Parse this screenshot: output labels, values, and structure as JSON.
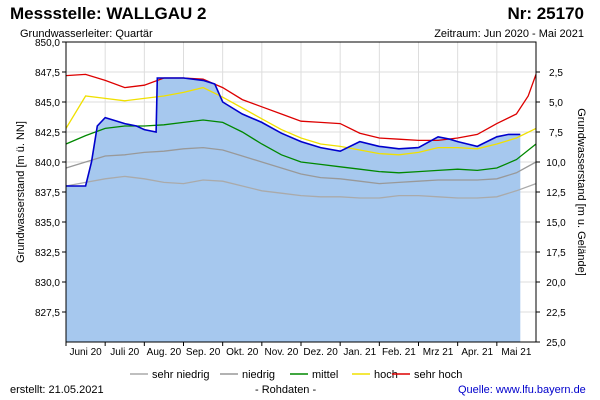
{
  "header": {
    "title": "Messstelle: WALLGAU 2",
    "number": "Nr: 25170",
    "aquifer": "Grundwasserleiter: Quartär",
    "period": "Zeitraum: Jun 2020 - Mai 2021"
  },
  "footer": {
    "created": "erstellt:  21.05.2021",
    "raw": "- Rohdaten -",
    "source_label": "Quelle:",
    "source_url": "www.lfu.bayern.de"
  },
  "colors": {
    "fill": "#a6c8ee",
    "measured": "#0000cc",
    "sehr_niedrig": "#aaaaaa",
    "niedrig": "#999999",
    "mittel": "#008800",
    "hoch": "#f0e000",
    "sehr_hoch": "#dd0000"
  },
  "chart_data": {
    "type": "line",
    "title": "",
    "ylabel": "Grundwasserstand [m ü. NN]",
    "y2label": "Grundwasserstand [m u. Gelände]",
    "ylim": [
      825.0,
      850.0
    ],
    "y2lim": [
      25.0,
      0.0
    ],
    "xlim": [
      0,
      12
    ],
    "yticks": [
      "827,5",
      "830,0",
      "832,5",
      "835,0",
      "837,5",
      "840,0",
      "842,5",
      "845,0",
      "847,5",
      "850,0"
    ],
    "y2ticks": [
      "2,5",
      "5,0",
      "7,5",
      "10,0",
      "12,5",
      "15,0",
      "17,5",
      "20,0",
      "22,5",
      "25,0"
    ],
    "months": [
      "Juni 20",
      "Juli 20",
      "Aug. 20",
      "Sep. 20",
      "Okt. 20",
      "Nov. 20",
      "Dez. 20",
      "Jan. 21",
      "Feb. 21",
      "Mrz 21",
      "Apr. 21",
      "Mai 21"
    ],
    "legend": [
      "sehr niedrig",
      "niedrig",
      "mittel",
      "hoch",
      "sehr hoch"
    ],
    "series": [
      {
        "name": "sehr niedrig",
        "x": [
          0,
          0.5,
          1,
          1.5,
          2,
          2.5,
          3,
          3.5,
          4,
          4.5,
          5,
          5.5,
          6,
          6.5,
          7,
          7.5,
          8,
          8.5,
          9,
          9.5,
          10,
          10.5,
          11,
          11.5,
          12
        ],
        "values": [
          838.0,
          838.3,
          838.6,
          838.8,
          838.6,
          838.3,
          838.2,
          838.5,
          838.4,
          838.0,
          837.6,
          837.4,
          837.2,
          837.1,
          837.1,
          837.0,
          837.0,
          837.2,
          837.2,
          837.1,
          837.0,
          837.0,
          837.1,
          837.6,
          838.2
        ]
      },
      {
        "name": "niedrig",
        "x": [
          0,
          0.5,
          1,
          1.5,
          2,
          2.5,
          3,
          3.5,
          4,
          4.5,
          5,
          5.5,
          6,
          6.5,
          7,
          7.5,
          8,
          8.5,
          9,
          9.5,
          10,
          10.5,
          11,
          11.5,
          12
        ],
        "values": [
          839.5,
          840.0,
          840.5,
          840.6,
          840.8,
          840.9,
          841.1,
          841.2,
          841.0,
          840.5,
          840.0,
          839.5,
          839.0,
          838.7,
          838.6,
          838.4,
          838.2,
          838.3,
          838.4,
          838.5,
          838.5,
          838.5,
          838.6,
          839.1,
          840.0
        ]
      },
      {
        "name": "mittel",
        "x": [
          0,
          0.5,
          1,
          1.5,
          2,
          2.5,
          3,
          3.5,
          4,
          4.5,
          5,
          5.5,
          6,
          6.5,
          7,
          7.5,
          8,
          8.5,
          9,
          9.5,
          10,
          10.5,
          11,
          11.5,
          12
        ],
        "values": [
          841.5,
          842.2,
          842.8,
          843.0,
          843.0,
          843.1,
          843.3,
          843.5,
          843.3,
          842.5,
          841.5,
          840.6,
          840.0,
          839.8,
          839.6,
          839.4,
          839.2,
          839.1,
          839.2,
          839.3,
          839.4,
          839.3,
          839.5,
          840.2,
          841.5
        ]
      },
      {
        "name": "hoch",
        "x": [
          0,
          0.5,
          1,
          1.5,
          2,
          2.5,
          3,
          3.5,
          4,
          4.5,
          5,
          5.5,
          6,
          6.5,
          7,
          7.5,
          8,
          8.5,
          9,
          9.5,
          10,
          10.5,
          11,
          11.5,
          12
        ],
        "values": [
          842.8,
          845.5,
          845.3,
          845.1,
          845.3,
          845.5,
          845.8,
          846.2,
          845.4,
          844.5,
          843.6,
          842.7,
          842.0,
          841.5,
          841.3,
          841.0,
          840.7,
          840.6,
          840.8,
          841.2,
          841.2,
          841.1,
          841.5,
          842.0,
          842.8
        ]
      },
      {
        "name": "sehr hoch",
        "x": [
          0,
          0.5,
          1,
          1.5,
          2,
          2.5,
          3,
          3.5,
          4,
          4.5,
          5,
          5.5,
          6,
          6.5,
          7,
          7.5,
          8,
          8.5,
          9,
          9.5,
          10,
          10.5,
          11,
          11.5,
          11.8,
          12
        ],
        "values": [
          847.2,
          847.3,
          846.8,
          846.2,
          846.4,
          847.0,
          847.0,
          846.9,
          846.2,
          845.2,
          844.6,
          844.0,
          843.4,
          843.3,
          843.2,
          842.4,
          842.0,
          841.9,
          841.8,
          841.8,
          842.0,
          842.3,
          843.2,
          844.0,
          845.5,
          847.3
        ]
      },
      {
        "name": "",
        "x": [
          0,
          0.5,
          0.65,
          0.8,
          1.0,
          1.2,
          1.5,
          1.8,
          2.0,
          2.3,
          2.33,
          2.6,
          3.0,
          3.5,
          3.8,
          4.0,
          4.5,
          5.0,
          5.5,
          6.0,
          6.5,
          7.0,
          7.5,
          8.0,
          8.5,
          9.0,
          9.5,
          9.8,
          10.0,
          10.5,
          11.0,
          11.3,
          11.6
        ],
        "values": [
          838.0,
          838.0,
          840.0,
          843.0,
          843.7,
          843.5,
          843.2,
          843.0,
          842.7,
          842.5,
          847.0,
          847.0,
          847.0,
          846.8,
          846.5,
          845.0,
          844.0,
          843.3,
          842.4,
          841.7,
          841.2,
          840.9,
          841.7,
          841.3,
          841.1,
          841.2,
          842.1,
          841.9,
          841.7,
          841.3,
          842.1,
          842.3,
          842.3
        ]
      }
    ]
  }
}
